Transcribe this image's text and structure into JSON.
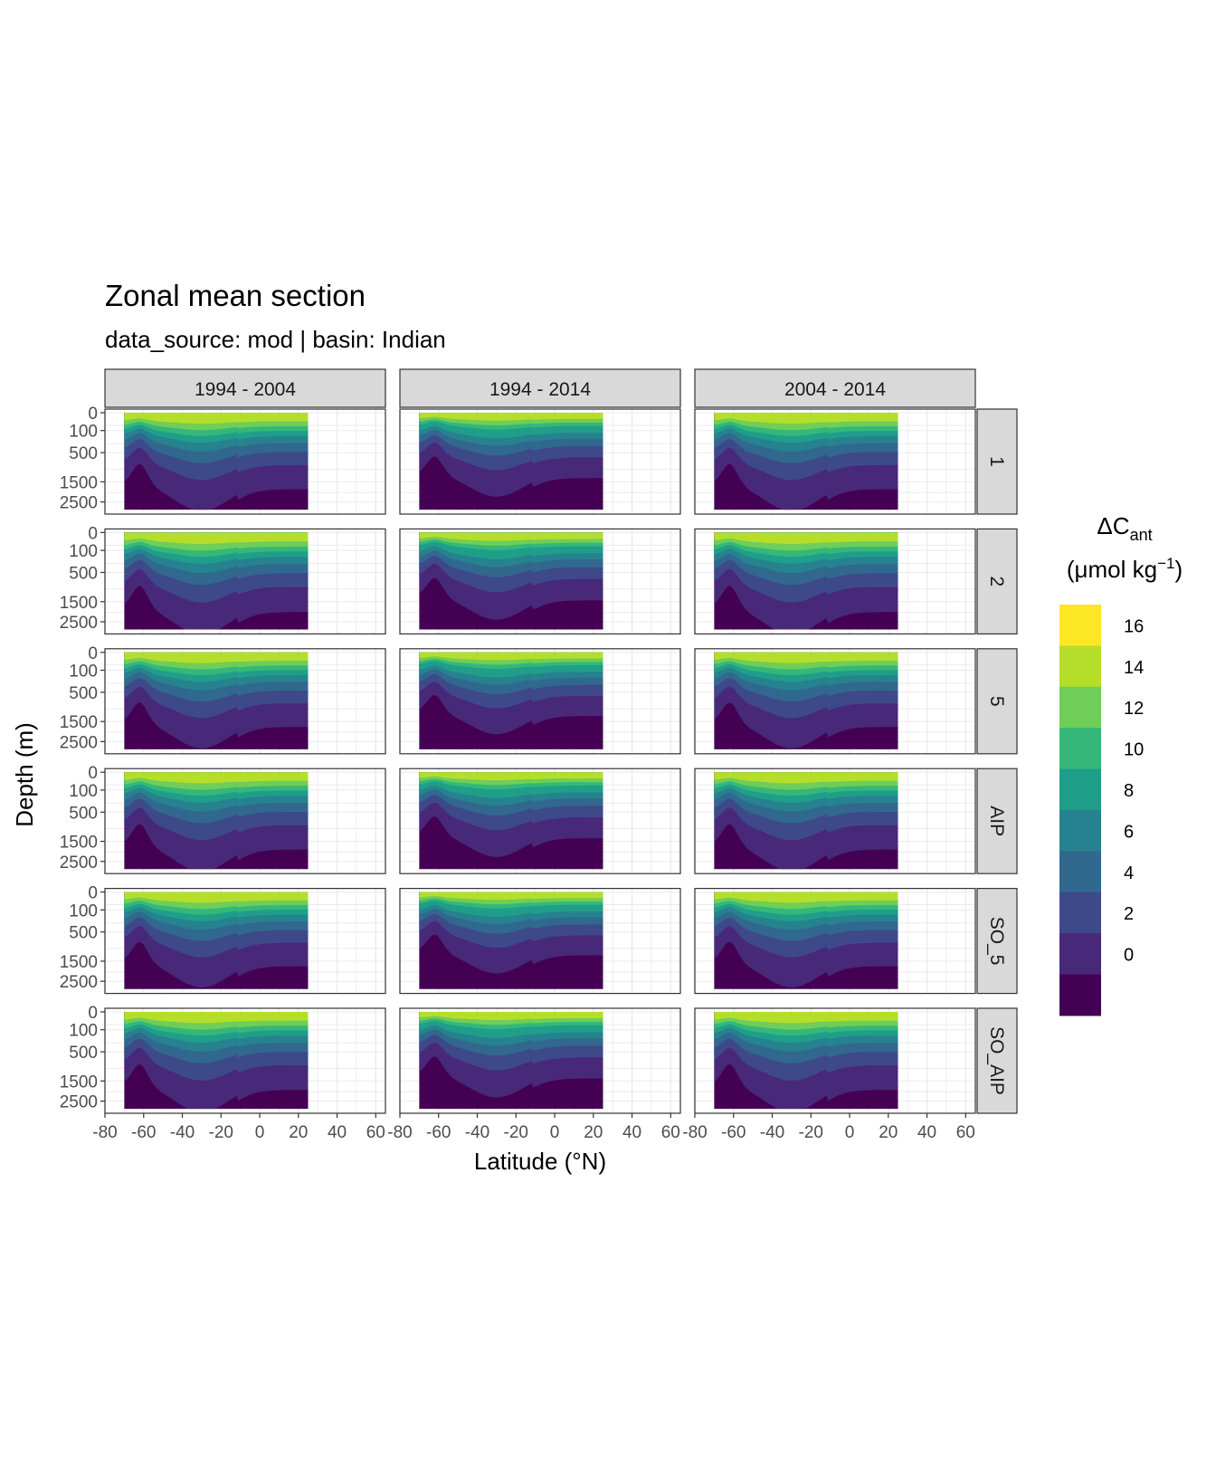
{
  "chart_data": {
    "type": "heatmap",
    "title": "Zonal mean section",
    "subtitle": "data_source:  mod | basin: Indian",
    "xlabel": "Latitude (°N)",
    "ylabel": "Depth (m)",
    "x_ticks": [
      "-80",
      "-60",
      "-40",
      "-20",
      "0",
      "20",
      "40",
      "60"
    ],
    "xlim": [
      -80,
      65
    ],
    "y_ticks": [
      "0",
      "100",
      "500",
      "1500",
      "2500"
    ],
    "y_scale": "square-root, reversed",
    "ylim": [
      0,
      3000
    ],
    "data_lat_range": [
      -70,
      25
    ],
    "column_facets": [
      "1994 - 2004",
      "1994 - 2014",
      "2004 - 2014"
    ],
    "row_facets": [
      "1",
      "2",
      "5",
      "AIP",
      "SO_5",
      "SO_AIP"
    ],
    "legend": {
      "title_main": "ΔC",
      "title_sub": "ant",
      "units_pre": "(μmol kg",
      "units_sup": "−1",
      "units_post": ")",
      "position": "right",
      "breaks": [
        "16",
        "14",
        "12",
        "10",
        "8",
        "6",
        "4",
        "2",
        "0"
      ],
      "colors": [
        "#fde725",
        "#b5de2b",
        "#6ece58",
        "#35b779",
        "#1f9e89",
        "#26828e",
        "#31688e",
        "#3e4989",
        "#482878",
        "#440154"
      ]
    },
    "grid": true,
    "panel_note": "filled contour bands of ΔC_ant by latitude and depth"
  }
}
